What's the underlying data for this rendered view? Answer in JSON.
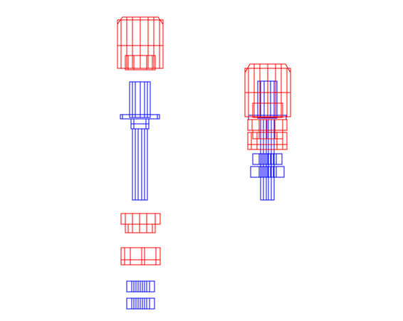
{
  "view": "exploded-and-assembled-wireframe",
  "colors": {
    "part_red": "#ff0000",
    "part_blue": "#0000ff",
    "background": "#ffffff"
  },
  "parts": [
    {
      "id": "cap-nut",
      "color": "part_red"
    },
    {
      "id": "center-pin",
      "color": "part_blue"
    },
    {
      "id": "upper-hex-nut",
      "color": "part_red"
    },
    {
      "id": "lower-hex-nut",
      "color": "part_red"
    },
    {
      "id": "washer-upper",
      "color": "part_blue"
    },
    {
      "id": "washer-lower",
      "color": "part_blue"
    }
  ]
}
